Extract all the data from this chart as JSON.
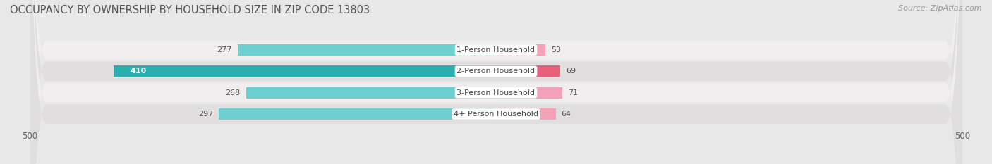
{
  "title": "OCCUPANCY BY OWNERSHIP BY HOUSEHOLD SIZE IN ZIP CODE 13803",
  "source": "Source: ZipAtlas.com",
  "categories": [
    "1-Person Household",
    "2-Person Household",
    "3-Person Household",
    "4+ Person Household"
  ],
  "owner_values": [
    277,
    410,
    268,
    297
  ],
  "renter_values": [
    53,
    69,
    71,
    64
  ],
  "owner_color_normal": "#6dcfcf",
  "owner_color_highlight": "#2aafaf",
  "renter_color_normal": "#f4a0b8",
  "renter_color_highlight": "#e8607a",
  "highlight_row": 1,
  "background_color": "#e8e8e8",
  "row_colors": [
    "#f0eeee",
    "#e0dede"
  ],
  "axis_max": 500,
  "title_fontsize": 10.5,
  "source_fontsize": 8,
  "label_fontsize": 8,
  "tick_fontsize": 8.5,
  "legend_fontsize": 8.5
}
